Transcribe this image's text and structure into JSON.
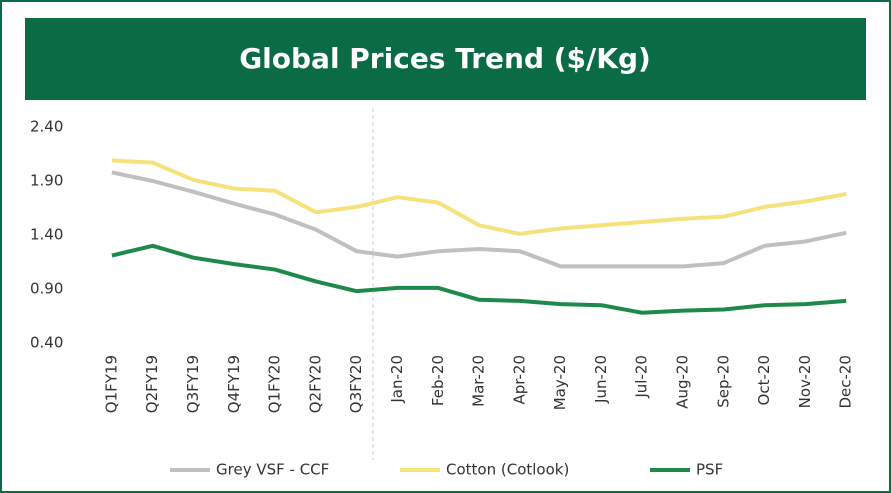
{
  "chart_data": {
    "type": "line",
    "title": "Global Prices Trend ($/Kg)",
    "categories": [
      "Q1FY19",
      "Q2FY19",
      "Q3FY19",
      "Q4FY19",
      "Q1FY20",
      "Q2FY20",
      "Q3FY20",
      "Jan-20",
      "Feb-20",
      "Mar-20",
      "Apr-20",
      "May-20",
      "Jun-20",
      "Jul-20",
      "Aug-20",
      "Sep-20",
      "Oct-20",
      "Nov-20",
      "Dec-20"
    ],
    "series": [
      {
        "name": "Grey VSF - CCF",
        "color": "#c0c0c0",
        "values": [
          1.98,
          1.9,
          1.8,
          1.69,
          1.59,
          1.45,
          1.25,
          1.2,
          1.25,
          1.27,
          1.25,
          1.11,
          1.11,
          1.11,
          1.11,
          1.14,
          1.3,
          1.34,
          1.42
        ]
      },
      {
        "name": "Cotton (Cotlook)",
        "color": "#f6e27a",
        "values": [
          2.09,
          2.07,
          1.91,
          1.83,
          1.81,
          1.61,
          1.66,
          1.75,
          1.7,
          1.49,
          1.41,
          1.46,
          1.49,
          1.52,
          1.55,
          1.57,
          1.66,
          1.71,
          1.78
        ]
      },
      {
        "name": "PSF",
        "color": "#1e8a4a",
        "values": [
          1.21,
          1.3,
          1.19,
          1.13,
          1.08,
          0.97,
          0.88,
          0.91,
          0.91,
          0.8,
          0.79,
          0.76,
          0.75,
          0.68,
          0.7,
          0.71,
          0.75,
          0.76,
          0.79
        ]
      }
    ],
    "ylim": [
      0.4,
      2.4
    ],
    "yticks": [
      {
        "value": 0.4,
        "label": "0.40"
      },
      {
        "value": 0.9,
        "label": "0.90"
      },
      {
        "value": 1.4,
        "label": "1.40"
      },
      {
        "value": 1.9,
        "label": "1.90"
      },
      {
        "value": 2.4,
        "label": "2.40"
      }
    ],
    "legend": "bottom"
  }
}
